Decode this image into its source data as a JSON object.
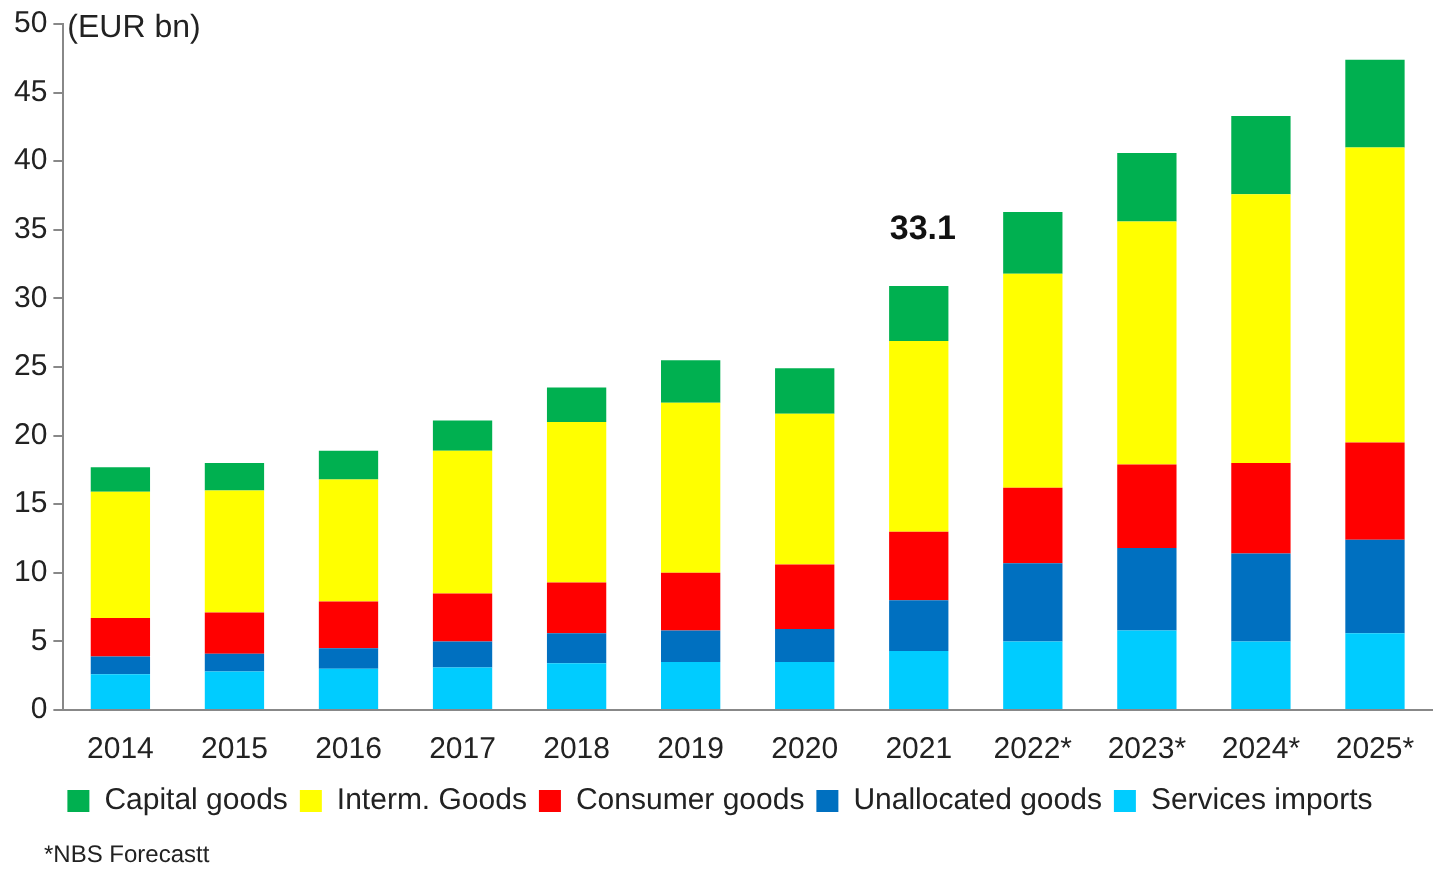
{
  "chart_data": {
    "type": "bar",
    "stacked": true,
    "ylabel": "(EUR bn)",
    "categories": [
      "2014",
      "2015",
      "2016",
      "2017",
      "2018",
      "2019",
      "2020",
      "2021",
      "2022*",
      "2023*",
      "2024*",
      "2025*"
    ],
    "series": [
      {
        "name": "Services imports",
        "color": "#00ccff",
        "values": [
          2.6,
          2.8,
          3.0,
          3.1,
          3.4,
          3.5,
          3.5,
          4.3,
          5.0,
          5.8,
          5.0,
          5.6
        ]
      },
      {
        "name": "Unallocated goods",
        "color": "#0070c0",
        "values": [
          1.3,
          1.3,
          1.5,
          1.9,
          2.2,
          2.3,
          2.4,
          3.7,
          5.7,
          6.0,
          6.4,
          6.8
        ]
      },
      {
        "name": "Consumer goods",
        "color": "#ff0000",
        "values": [
          2.8,
          3.0,
          3.4,
          3.5,
          3.7,
          4.2,
          4.7,
          5.0,
          5.5,
          6.1,
          6.6,
          7.1
        ]
      },
      {
        "name": "Interm. Goods",
        "color": "#ffff00",
        "values": [
          9.2,
          8.9,
          8.9,
          10.4,
          11.7,
          12.4,
          11.0,
          13.9,
          15.6,
          17.7,
          19.6,
          21.5
        ]
      },
      {
        "name": "Capital goods",
        "color": "#00b050",
        "values": [
          1.8,
          2.0,
          2.1,
          2.2,
          2.5,
          3.1,
          3.3,
          4.0,
          4.5,
          5.0,
          5.7,
          6.4
        ]
      }
    ],
    "ylim": [
      0,
      50
    ],
    "yticks": [
      0,
      5,
      10,
      15,
      20,
      25,
      30,
      35,
      40,
      45,
      50
    ],
    "grid": false,
    "legend": "bottom",
    "annotations": [
      "33.1",
      "*NBS Forecastt"
    ]
  }
}
